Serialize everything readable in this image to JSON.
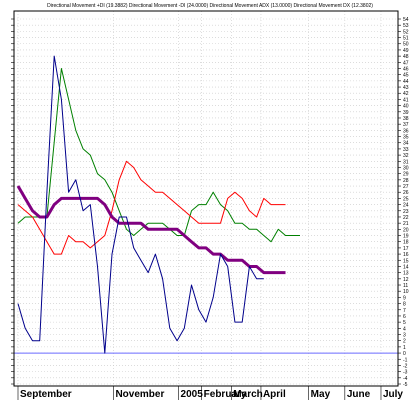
{
  "chart_data": {
    "type": "line",
    "title": "Directional Movement +DI (19.3882) Directional Movement -DI (24.0000) Directional Movement ADX (13.0000) Directional Movement DX (12.3802)",
    "xlabel": "",
    "ylabel": "",
    "ylim": [
      -5,
      54
    ],
    "y_ticks": [
      -5,
      -4,
      -3,
      -2,
      -1,
      0,
      1,
      2,
      3,
      4,
      5,
      6,
      7,
      8,
      9,
      10,
      11,
      12,
      13,
      14,
      15,
      16,
      17,
      18,
      19,
      20,
      21,
      22,
      23,
      24,
      25,
      26,
      27,
      28,
      29,
      30,
      31,
      32,
      33,
      34,
      35,
      36,
      37,
      38,
      39,
      40,
      41,
      42,
      43,
      44,
      45,
      46,
      47,
      48,
      49,
      50,
      51,
      52,
      53,
      54
    ],
    "x_tick_labels": [
      "September",
      "November",
      "2005",
      "February",
      "March",
      "April",
      "May",
      "June",
      "July"
    ],
    "x_range": [
      0,
      52
    ],
    "x_tick_positions": [
      0,
      13.2,
      22.2,
      25.4,
      29.5,
      33.6,
      40.2,
      45.2,
      50.2
    ],
    "grid": true,
    "legend": "none",
    "zero_line": 0,
    "series": [
      {
        "name": "+DI",
        "color": "#008000",
        "points": [
          [
            0,
            21
          ],
          [
            1,
            22
          ],
          [
            3,
            22
          ],
          [
            4,
            22
          ],
          [
            6,
            46
          ],
          [
            7,
            41
          ],
          [
            8,
            36
          ],
          [
            9,
            33
          ],
          [
            10,
            32
          ],
          [
            11,
            29
          ],
          [
            12,
            28
          ],
          [
            13,
            26
          ],
          [
            14,
            23
          ],
          [
            15,
            20
          ],
          [
            16,
            19
          ],
          [
            17,
            20
          ],
          [
            18,
            21
          ],
          [
            19,
            21
          ],
          [
            20,
            21
          ],
          [
            21,
            20
          ],
          [
            22,
            19
          ],
          [
            23,
            19
          ],
          [
            24,
            23
          ],
          [
            25,
            24
          ],
          [
            26,
            24
          ],
          [
            27,
            26
          ],
          [
            28,
            24
          ],
          [
            29,
            23
          ],
          [
            30,
            21
          ],
          [
            31,
            21
          ],
          [
            32,
            20
          ],
          [
            33,
            20
          ],
          [
            34,
            19
          ],
          [
            35,
            18
          ],
          [
            36,
            20
          ],
          [
            37,
            19
          ],
          [
            38,
            19
          ],
          [
            39,
            19
          ]
        ]
      },
      {
        "name": "-DI",
        "color": "#ff0000",
        "points": [
          [
            0,
            24
          ],
          [
            1,
            23
          ],
          [
            2,
            22
          ],
          [
            3,
            20
          ],
          [
            4,
            18
          ],
          [
            5,
            16
          ],
          [
            6,
            16
          ],
          [
            7,
            19
          ],
          [
            8,
            18
          ],
          [
            9,
            18
          ],
          [
            10,
            17
          ],
          [
            11,
            18
          ],
          [
            12,
            19
          ],
          [
            13,
            23
          ],
          [
            14,
            28
          ],
          [
            15,
            31
          ],
          [
            16,
            30
          ],
          [
            17,
            28
          ],
          [
            18,
            27
          ],
          [
            19,
            26
          ],
          [
            20,
            26
          ],
          [
            21,
            25
          ],
          [
            22,
            24
          ],
          [
            23,
            23
          ],
          [
            24,
            22
          ],
          [
            25,
            21
          ],
          [
            26,
            21
          ],
          [
            27,
            21
          ],
          [
            28,
            21
          ],
          [
            29,
            25
          ],
          [
            30,
            26
          ],
          [
            31,
            25
          ],
          [
            32,
            23
          ],
          [
            33,
            22
          ],
          [
            34,
            25
          ],
          [
            35,
            24
          ],
          [
            36,
            24
          ],
          [
            37,
            24
          ]
        ]
      },
      {
        "name": "ADX",
        "color": "#800080",
        "points": [
          [
            0,
            27
          ],
          [
            1,
            25
          ],
          [
            2,
            23
          ],
          [
            3,
            22
          ],
          [
            4,
            22
          ],
          [
            5,
            24
          ],
          [
            6,
            25
          ],
          [
            7,
            25
          ],
          [
            8,
            25
          ],
          [
            9,
            25
          ],
          [
            10,
            25
          ],
          [
            11,
            25
          ],
          [
            12,
            24
          ],
          [
            13,
            22
          ],
          [
            14,
            21
          ],
          [
            15,
            21
          ],
          [
            16,
            21
          ],
          [
            17,
            21
          ],
          [
            18,
            20
          ],
          [
            19,
            20
          ],
          [
            20,
            20
          ],
          [
            21,
            20
          ],
          [
            22,
            20
          ],
          [
            23,
            19
          ],
          [
            24,
            18
          ],
          [
            25,
            17
          ],
          [
            26,
            17
          ],
          [
            27,
            16
          ],
          [
            28,
            16
          ],
          [
            29,
            15
          ],
          [
            30,
            15
          ],
          [
            31,
            15
          ],
          [
            32,
            14
          ],
          [
            33,
            14
          ],
          [
            34,
            13
          ],
          [
            35,
            13
          ],
          [
            36,
            13
          ],
          [
            37,
            13
          ]
        ]
      },
      {
        "name": "DX",
        "color": "#00008b",
        "points": [
          [
            0,
            8
          ],
          [
            1,
            4
          ],
          [
            2,
            2
          ],
          [
            3,
            2
          ],
          [
            4,
            26
          ],
          [
            5,
            48
          ],
          [
            6,
            41
          ],
          [
            7,
            26
          ],
          [
            8,
            28
          ],
          [
            9,
            23
          ],
          [
            10,
            24
          ],
          [
            11,
            14
          ],
          [
            12,
            0
          ],
          [
            13,
            16
          ],
          [
            14,
            22
          ],
          [
            15,
            22
          ],
          [
            16,
            17
          ],
          [
            17,
            15
          ],
          [
            18,
            13
          ],
          [
            19,
            16
          ],
          [
            20,
            12
          ],
          [
            21,
            4
          ],
          [
            22,
            2
          ],
          [
            23,
            4
          ],
          [
            24,
            11
          ],
          [
            25,
            7
          ],
          [
            26,
            5
          ],
          [
            27,
            9
          ],
          [
            28,
            16
          ],
          [
            29,
            14
          ],
          [
            30,
            5
          ],
          [
            31,
            5
          ],
          [
            32,
            14
          ],
          [
            33,
            12
          ],
          [
            34,
            12
          ]
        ]
      }
    ]
  }
}
